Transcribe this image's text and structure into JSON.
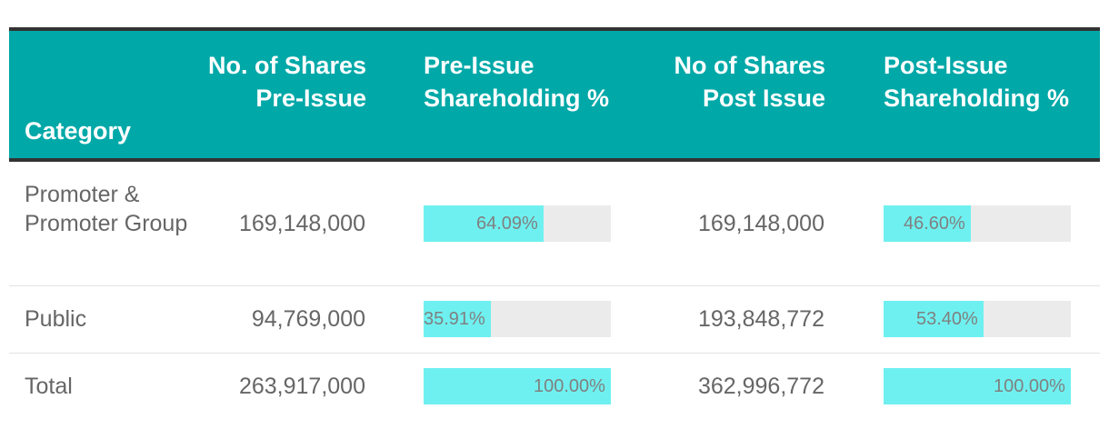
{
  "table": {
    "headers": {
      "category": "Category",
      "pre_shares": "No. of Shares Pre-Issue",
      "pre_pct": "Pre-Issue Shareholding %",
      "post_shares": "No of Shares Post Issue",
      "post_pct": "Post-Issue Shareholding %"
    },
    "rows": [
      {
        "category": "Promoter & Promoter Group",
        "pre_shares": "169,148,000",
        "pre_pct_label": "64.09%",
        "pre_pct": 64.09,
        "post_shares": "169,148,000",
        "post_pct_label": "46.60%",
        "post_pct": 46.6
      },
      {
        "category": "Public",
        "pre_shares": "94,769,000",
        "pre_pct_label": "35.91%",
        "pre_pct": 35.91,
        "post_shares": "193,848,772",
        "post_pct_label": "53.40%",
        "post_pct": 53.4
      },
      {
        "category": "Total",
        "pre_shares": "263,917,000",
        "pre_pct_label": "100.00%",
        "pre_pct": 100.0,
        "post_shares": "362,996,772",
        "post_pct_label": "100.00%",
        "post_pct": 100.0
      }
    ]
  },
  "colors": {
    "header_bg": "#00a8a8",
    "bar_fill": "#6ff0f0",
    "bar_track": "#ebebeb"
  }
}
